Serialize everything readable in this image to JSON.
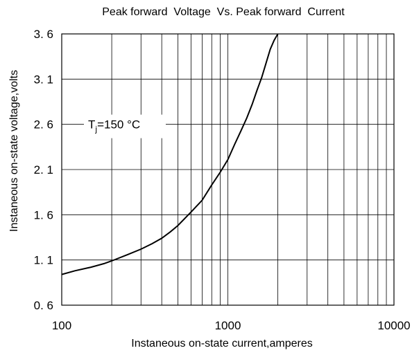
{
  "chart_data": {
    "type": "line",
    "title": "Peak forward  Voltage  Vs. Peak forward  Current",
    "xlabel": "Instaneous on-state current,amperes",
    "ylabel": "Instaneous on-state voltage,volts",
    "x_scale": "log",
    "xlim": [
      100,
      10000
    ],
    "ylim": [
      0.6,
      3.6
    ],
    "x_ticks": [
      100,
      1000,
      10000
    ],
    "x_tick_labels": [
      "100",
      "1000",
      "10000"
    ],
    "y_ticks": [
      0.6,
      1.1,
      1.6,
      2.1,
      2.6,
      3.1,
      3.6
    ],
    "y_tick_labels": [
      "0. 6",
      "1. 1",
      "1. 6",
      "2. 1",
      "2. 6",
      "3. 1",
      "3. 6"
    ],
    "grid": true,
    "annotation": {
      "main": "T",
      "sub": "j",
      "rest": "=150 °C"
    },
    "series": [
      {
        "x": [
          100,
          120,
          150,
          180,
          200,
          250,
          300,
          350,
          400,
          450,
          500,
          600,
          700,
          800,
          900,
          1000,
          1100,
          1200,
          1300,
          1400,
          1500,
          1600,
          1700,
          1800,
          1900,
          2000
        ],
        "y": [
          0.94,
          0.98,
          1.02,
          1.06,
          1.09,
          1.16,
          1.22,
          1.28,
          1.34,
          1.41,
          1.48,
          1.63,
          1.76,
          1.93,
          2.07,
          2.21,
          2.38,
          2.53,
          2.67,
          2.82,
          2.98,
          3.12,
          3.28,
          3.43,
          3.53,
          3.62
        ],
        "color": "#000000"
      }
    ]
  }
}
